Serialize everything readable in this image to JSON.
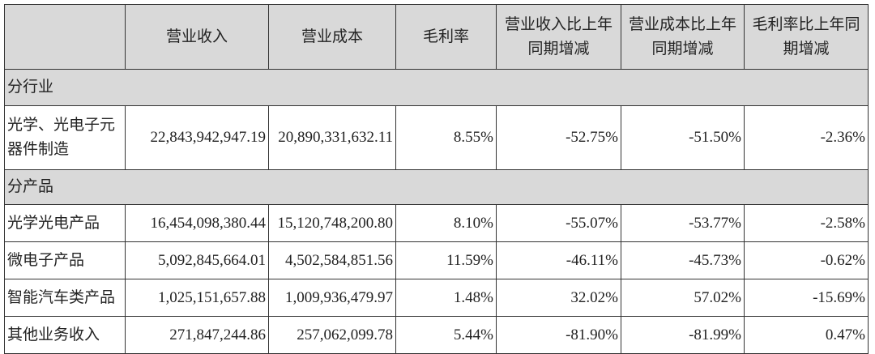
{
  "headers": [
    "",
    "营业收入",
    "营业成本",
    "毛利率",
    "营业收入比上年同期增减",
    "营业成本比上年同期增减",
    "毛利率比上年同期增减"
  ],
  "header_lines": {
    "col4": [
      "营业收入比上年",
      "同期增减"
    ],
    "col5": [
      "营业成本比上年",
      "同期增减"
    ],
    "col6": [
      "毛利率比上年同",
      "期增减"
    ]
  },
  "sections": [
    {
      "title": "分行业",
      "rows": [
        {
          "name": "光学、光电子元器件制造",
          "revenue": "22,843,942,947.19",
          "cost": "20,890,331,632.11",
          "margin": "8.55%",
          "rev_change": "-52.75%",
          "cost_change": "-51.50%",
          "margin_change": "-2.36%"
        }
      ]
    },
    {
      "title": "分产品",
      "rows": [
        {
          "name": "光学光电产品",
          "revenue": "16,454,098,380.44",
          "cost": "15,120,748,200.80",
          "margin": "8.10%",
          "rev_change": "-55.07%",
          "cost_change": "-53.77%",
          "margin_change": "-2.58%"
        },
        {
          "name": "微电子产品",
          "revenue": "5,092,845,664.01",
          "cost": "4,502,584,851.56",
          "margin": "11.59%",
          "rev_change": "-46.11%",
          "cost_change": "-45.73%",
          "margin_change": "-0.62%"
        },
        {
          "name": "智能汽车类产品",
          "revenue": "1,025,151,657.88",
          "cost": "1,009,936,479.97",
          "margin": "1.48%",
          "rev_change": "32.02%",
          "cost_change": "57.02%",
          "margin_change": "-15.69%"
        },
        {
          "name": "其他业务收入",
          "revenue": "271,847,244.86",
          "cost": "257,062,099.78",
          "margin": "5.44%",
          "rev_change": "-81.90%",
          "cost_change": "-81.99%",
          "margin_change": "0.47%"
        }
      ]
    }
  ]
}
